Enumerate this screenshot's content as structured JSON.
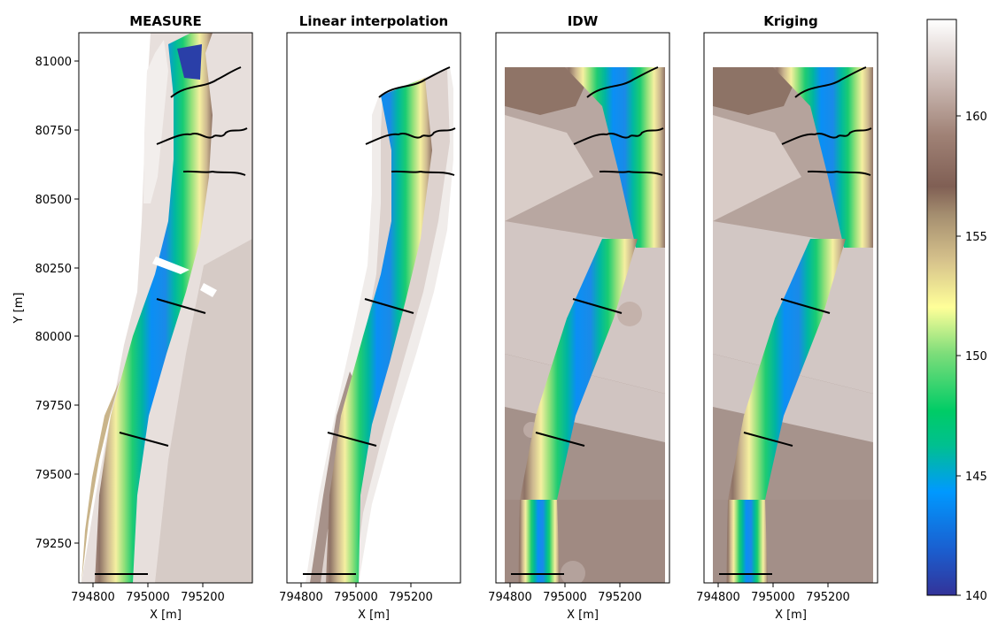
{
  "chart_data": [
    {
      "type": "heatmap",
      "title": "MEASURE",
      "xlabel": "X [m]",
      "ylabel": "Y [m]",
      "xticks": [
        794800,
        795000,
        795200
      ],
      "yticks": [
        79250,
        79500,
        79750,
        80000,
        80250,
        80500,
        80750,
        81000
      ],
      "xlim": [
        794750,
        795380
      ],
      "ylim": [
        79100,
        81100
      ],
      "data_extent": "full channel with surrounding terrain",
      "cross_sections": 6
    },
    {
      "type": "heatmap",
      "title": "Linear interpolation",
      "xlabel": "X [m]",
      "xticks": [
        794800,
        795000,
        795200
      ],
      "xlim": [
        794750,
        795380
      ],
      "ylim": [
        79100,
        81100
      ],
      "data_extent": "channel corridor only",
      "cross_sections": 6
    },
    {
      "type": "heatmap",
      "title": "IDW",
      "xlabel": "X [m]",
      "xticks": [
        794800,
        795000,
        795200
      ],
      "xlim": [
        794750,
        795380
      ],
      "ylim": [
        79100,
        81100
      ],
      "data_extent": "full rectangle to y 80970",
      "cross_sections": 6
    },
    {
      "type": "heatmap",
      "title": "Kriging",
      "xlabel": "X [m]",
      "xticks": [
        794800,
        795000,
        795200
      ],
      "xlim": [
        794750,
        795380
      ],
      "ylim": [
        79100,
        81100
      ],
      "data_extent": "full rectangle to y 80970",
      "cross_sections": 6
    }
  ],
  "colorbar": {
    "colormap": "terrain",
    "ticks": [
      140,
      145,
      150,
      155,
      160
    ],
    "range": [
      140,
      164
    ]
  }
}
